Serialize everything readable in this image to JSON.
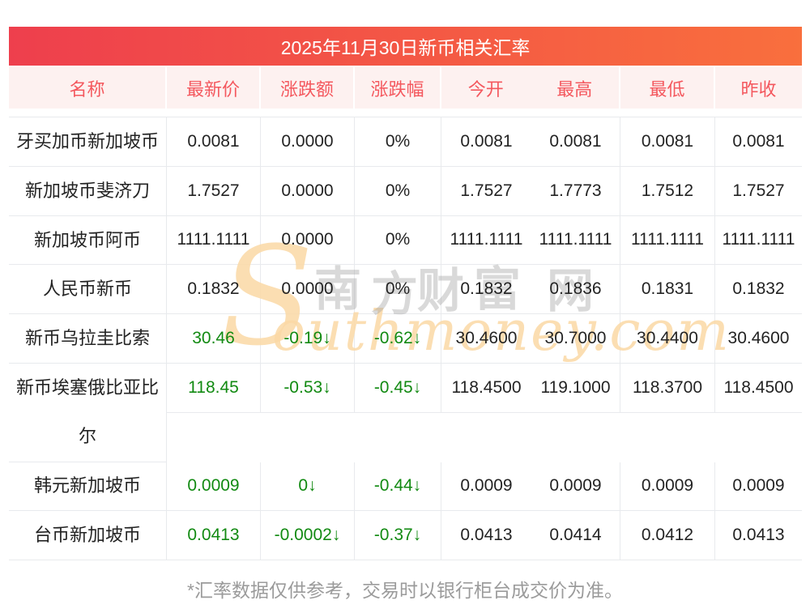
{
  "title": "2025年11月30日新币相关汇率",
  "columns": [
    "名称",
    "最新价",
    "涨跌额",
    "涨跌幅",
    "今开",
    "最高",
    "最低",
    "昨收"
  ],
  "rows": [
    {
      "name": "牙买加币新加坡币",
      "latest": "0.0081",
      "change": "0.0000",
      "change_pct": "0%",
      "open": "0.0081",
      "high": "0.0081",
      "low": "0.0081",
      "prev_close": "0.0081",
      "trend": "flat"
    },
    {
      "name": "新加坡币斐济刀",
      "latest": "1.7527",
      "change": "0.0000",
      "change_pct": "0%",
      "open": "1.7527",
      "high": "1.7773",
      "low": "1.7512",
      "prev_close": "1.7527",
      "trend": "flat"
    },
    {
      "name": "新加坡币阿币",
      "latest": "1111.1111",
      "change": "0.0000",
      "change_pct": "0%",
      "open": "1111.1111",
      "high": "1111.1111",
      "low": "1111.1111",
      "prev_close": "1111.1111",
      "trend": "flat"
    },
    {
      "name": "人民币新币",
      "latest": "0.1832",
      "change": "0.0000",
      "change_pct": "0%",
      "open": "0.1832",
      "high": "0.1836",
      "low": "0.1831",
      "prev_close": "0.1832",
      "trend": "flat"
    },
    {
      "name": "新币乌拉圭比索",
      "latest": "30.46",
      "change": "-0.19↓",
      "change_pct": "-0.62↓",
      "open": "30.4600",
      "high": "30.7000",
      "low": "30.4400",
      "prev_close": "30.4600",
      "trend": "down"
    },
    {
      "name": "新币埃塞俄比亚比尔",
      "latest": "118.45",
      "change": "-0.53↓",
      "change_pct": "-0.45↓",
      "open": "118.4500",
      "high": "119.1000",
      "low": "118.3700",
      "prev_close": "118.4500",
      "trend": "down",
      "tall_name": true,
      "spacer_after": true
    },
    {
      "name": "韩元新加坡币",
      "latest": "0.0009",
      "change": "0↓",
      "change_pct": "-0.44↓",
      "open": "0.0009",
      "high": "0.0009",
      "low": "0.0009",
      "prev_close": "0.0009",
      "trend": "down"
    },
    {
      "name": "台币新加坡币",
      "latest": "0.0413",
      "change": "-0.0002↓",
      "change_pct": "-0.37↓",
      "open": "0.0413",
      "high": "0.0414",
      "low": "0.0412",
      "prev_close": "0.0413",
      "trend": "down"
    }
  ],
  "footnote": "*汇率数据仅供参考，交易时以银行柜台成交价为准。",
  "watermark": {
    "s_glyph": "S",
    "latin": "outhmoney.com",
    "cjk": [
      "南",
      "方",
      "财",
      "富",
      "网"
    ]
  },
  "colors": {
    "title_grad_start": "#ee3f4d",
    "title_grad_end": "#f96f3d",
    "header_bg": "#fdf1f0",
    "header_text": "#f4585e",
    "line": "#e8eaed",
    "body_text": "#232323",
    "down_green": "#128a12",
    "footnote_gray": "#9b9b9b"
  }
}
